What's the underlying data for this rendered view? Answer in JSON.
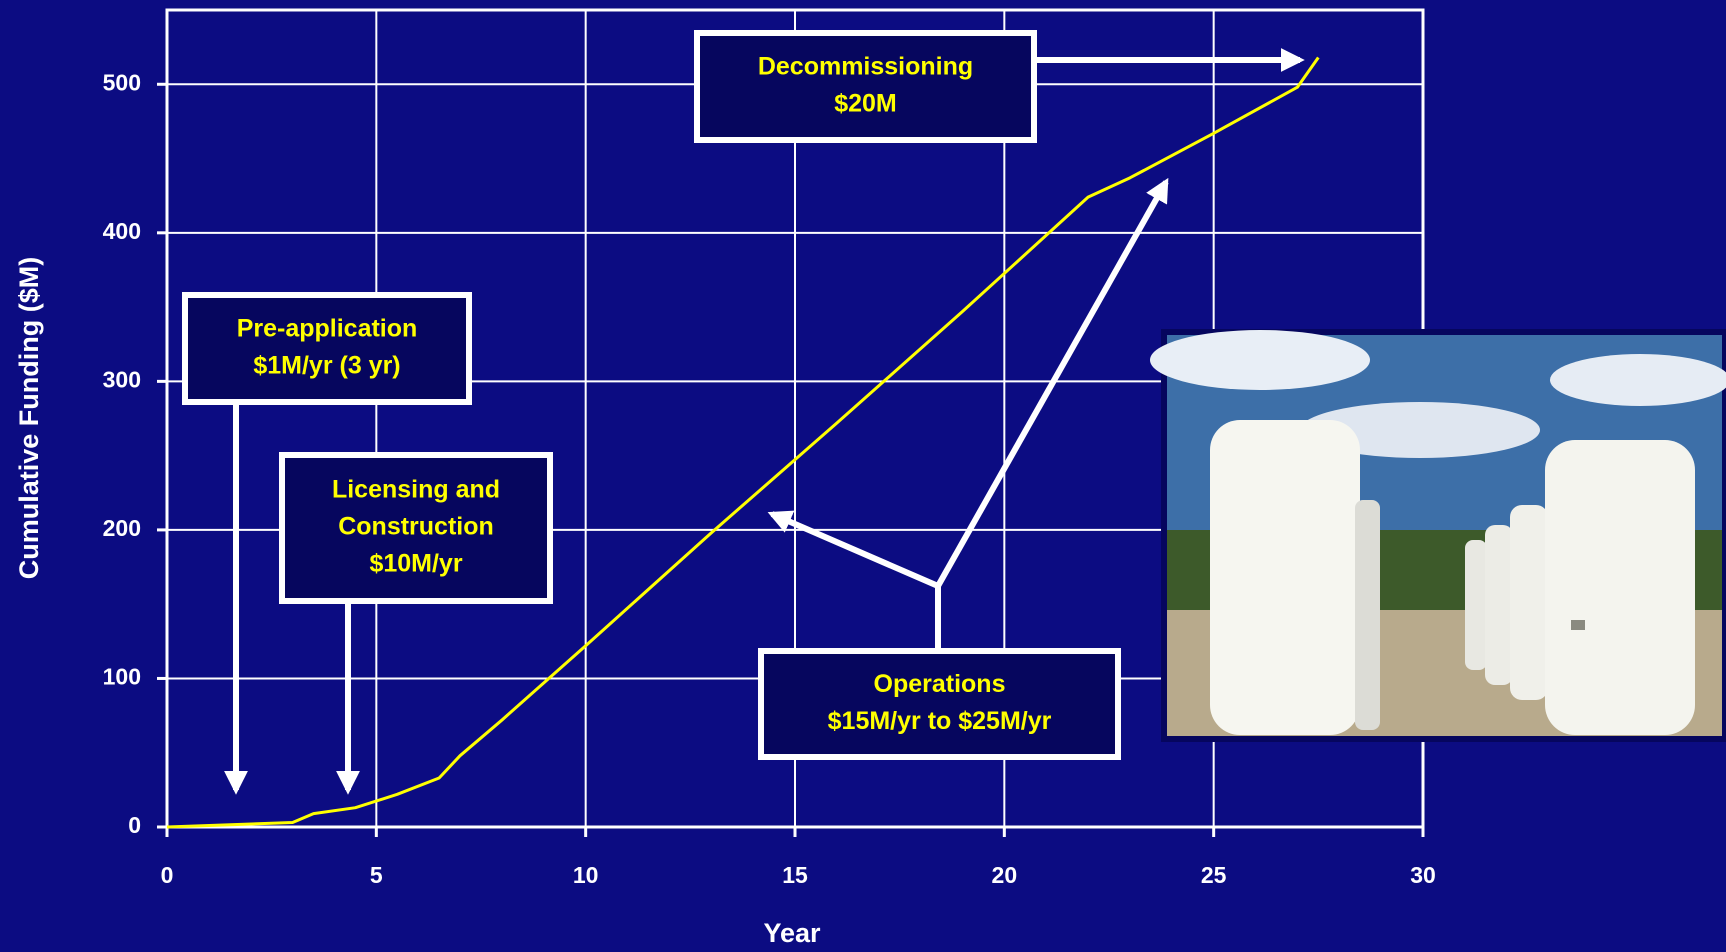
{
  "chart_data": {
    "type": "line",
    "xlabel": "Year",
    "ylabel": "Cumulative Funding ($M)",
    "x": [
      0,
      3,
      3.5,
      4.5,
      5.5,
      6.5,
      7,
      8,
      10,
      13,
      16,
      19,
      22,
      23,
      25,
      27,
      27.5
    ],
    "series": [
      {
        "color": "#ffff00",
        "values": [
          0,
          3,
          9,
          13,
          22,
          33,
          48,
          72,
          122,
          198,
          272,
          347,
          424,
          437,
          467,
          498,
          518
        ]
      }
    ],
    "xlim": [
      0,
      30
    ],
    "xticks": [
      0,
      5,
      10,
      15,
      20,
      25,
      30
    ],
    "ylim": [
      0,
      550
    ],
    "yticks": [
      0,
      100,
      200,
      300,
      400,
      500
    ],
    "grid": true,
    "annotations": [
      [
        "Decommissioning",
        "$20M"
      ],
      [
        "Pre-application",
        "$1M/yr (3 yr)"
      ],
      [
        "Licensing and",
        "Construction",
        "$10M/yr"
      ],
      [
        "Operations",
        "$15M/yr to $25M/yr"
      ]
    ]
  }
}
